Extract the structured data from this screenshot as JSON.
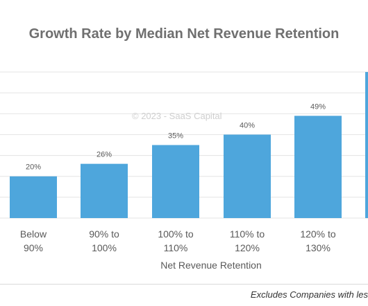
{
  "chart_data": {
    "type": "bar",
    "title": "Growth Rate by Median Net Revenue Retention",
    "xlabel": "Net Revenue Retention",
    "ylabel": "",
    "categories": [
      [
        "Below",
        "90%"
      ],
      [
        "90% to",
        "100%"
      ],
      [
        "100% to",
        "110%"
      ],
      [
        "110% to",
        "120%"
      ],
      [
        "120% to",
        "130%"
      ],
      [
        "",
        ""
      ]
    ],
    "values": [
      20,
      26,
      35,
      40,
      49,
      70
    ],
    "data_labels": [
      "20%",
      "26%",
      "35%",
      "40%",
      "49%",
      ""
    ],
    "ylim": [
      0,
      70
    ],
    "grid": true,
    "bar_color": "#4ea6dc"
  },
  "watermark": "© 2023 - SaaS Capital",
  "footnote": "Excludes Companies with les"
}
